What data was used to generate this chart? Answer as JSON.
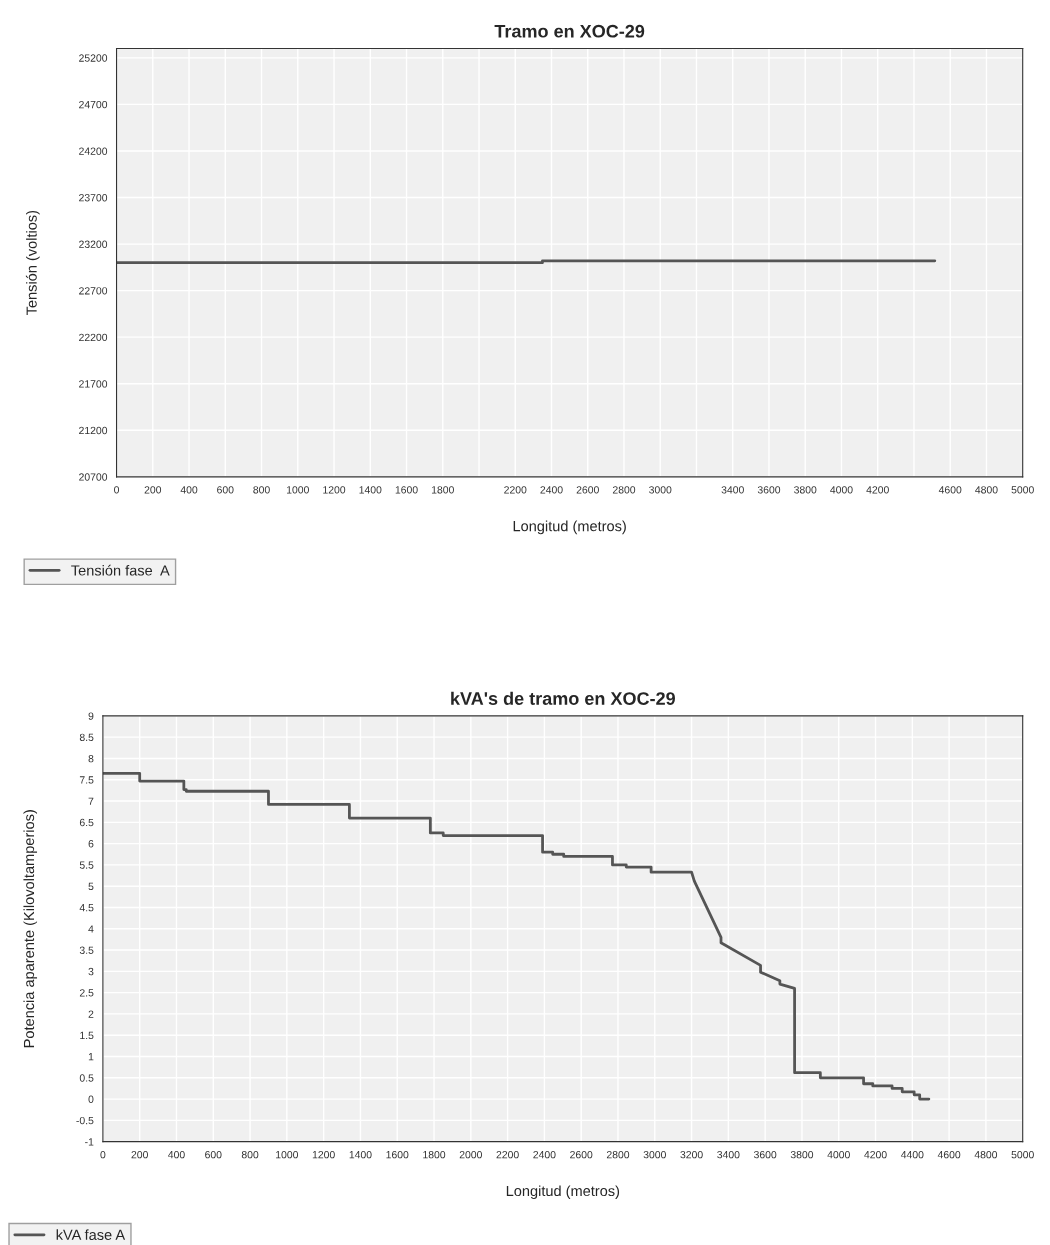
{
  "chart_data": [
    {
      "type": "line",
      "title": "Tramo en XOC-29",
      "xlabel": "Longitud (metros)",
      "ylabel": "Tensión (voltios)",
      "xlim": [
        0,
        5000
      ],
      "ylim": [
        20700,
        25300
      ],
      "xticks": [
        0,
        200,
        400,
        600,
        800,
        1000,
        1200,
        1400,
        1600,
        1800,
        {
          "value": 2000,
          "label": null
        },
        2200,
        2400,
        2600,
        2800,
        3000,
        {
          "value": 3200,
          "label": null
        },
        3400,
        3600,
        3800,
        4000,
        4200,
        {
          "value": 4400,
          "label": null
        },
        4600,
        4800,
        5000
      ],
      "yticks": [
        20700,
        21200,
        21700,
        22200,
        22700,
        23200,
        23700,
        24200,
        24700,
        25200
      ],
      "grid": true,
      "legend": "bottom",
      "series": [
        {
          "name": "Tensión fase  A",
          "color": "#555555",
          "x": [
            0,
            2350,
            2350,
            4515
          ],
          "values": [
            23000,
            23000,
            23020,
            23020
          ]
        }
      ]
    },
    {
      "type": "line",
      "title": "kVA's de tramo en XOC-29",
      "xlabel": "Longitud (metros)",
      "ylabel": "Potencia aparente (Kilovoltamperios)",
      "xlim": [
        0,
        5000
      ],
      "ylim": [
        -1,
        9
      ],
      "xticks": [
        0,
        200,
        400,
        600,
        800,
        1000,
        1200,
        1400,
        1600,
        1800,
        2000,
        2200,
        2400,
        2600,
        2800,
        3000,
        3200,
        3400,
        3600,
        3800,
        4000,
        4200,
        4400,
        4600,
        4800,
        5000
      ],
      "yticks": [
        -1,
        -0.5,
        0,
        0.5,
        1,
        1.5,
        2,
        2.5,
        3,
        3.5,
        4,
        4.5,
        5,
        5.5,
        6,
        6.5,
        7,
        7.5,
        8,
        8.5,
        9
      ],
      "grid": true,
      "legend": "bottom",
      "series": [
        {
          "name": "kVA fase A",
          "color": "#555555",
          "x": [
            0,
            200,
            200,
            440,
            440,
            453,
            453,
            900,
            900,
            1340,
            1340,
            1780,
            1780,
            1850,
            1850,
            2390,
            2390,
            2445,
            2445,
            2505,
            2505,
            2770,
            2770,
            2845,
            2845,
            2980,
            2980,
            3200,
            3215,
            3360,
            3360,
            3575,
            3575,
            3680,
            3680,
            3760,
            3760,
            3900,
            3900,
            4135,
            4135,
            4185,
            4185,
            4290,
            4290,
            4345,
            4345,
            4410,
            4410,
            4440,
            4440,
            4490
          ],
          "values": [
            7.65,
            7.65,
            7.47,
            7.47,
            7.27,
            7.27,
            7.23,
            7.23,
            6.92,
            6.92,
            6.6,
            6.6,
            6.25,
            6.25,
            6.19,
            6.19,
            5.8,
            5.8,
            5.75,
            5.75,
            5.7,
            5.7,
            5.5,
            5.5,
            5.45,
            5.45,
            5.33,
            5.33,
            5.12,
            3.8,
            3.67,
            3.14,
            2.98,
            2.78,
            2.7,
            2.6,
            0.62,
            0.62,
            0.5,
            0.5,
            0.36,
            0.36,
            0.31,
            0.31,
            0.25,
            0.25,
            0.17,
            0.17,
            0.1,
            0.1,
            0.0,
            0.0
          ]
        }
      ]
    }
  ]
}
